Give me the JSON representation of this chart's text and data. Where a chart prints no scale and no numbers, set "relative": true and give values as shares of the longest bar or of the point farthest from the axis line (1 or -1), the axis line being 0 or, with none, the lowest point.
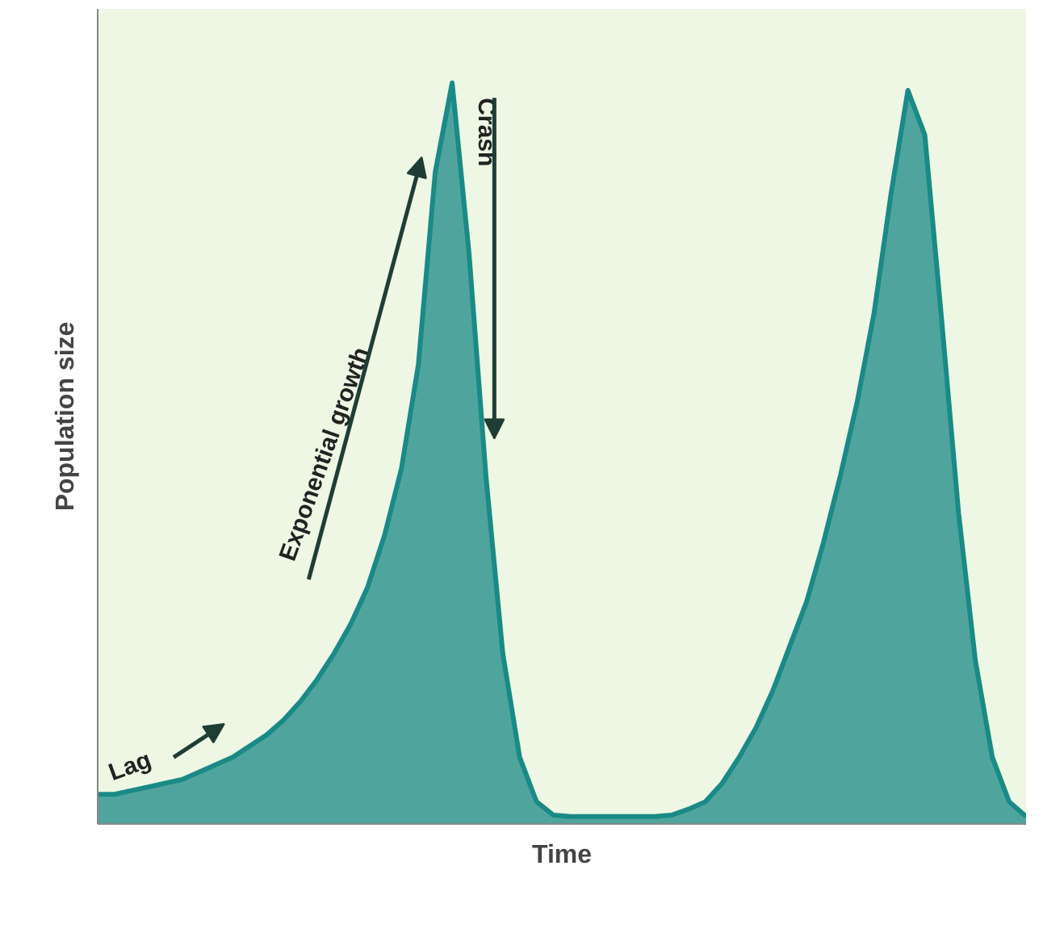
{
  "chart_data": {
    "type": "area",
    "relative": true,
    "xlabel": "Time",
    "ylabel": "Population size",
    "categories": [
      null,
      null,
      null,
      null,
      null,
      null,
      null,
      null,
      null,
      null,
      null,
      null,
      null,
      null,
      null,
      null,
      null,
      null,
      null,
      null,
      null,
      null,
      null,
      null,
      null,
      null,
      null,
      null,
      null,
      null,
      null,
      null,
      null,
      null,
      null,
      null,
      null,
      null,
      null,
      null,
      null,
      null,
      null,
      null,
      null,
      null,
      null,
      null,
      null,
      null,
      null,
      null,
      null,
      null,
      null,
      null
    ],
    "series": [
      {
        "color": "#1a8a86",
        "values": [
          0.04,
          0.04,
          0.045,
          0.05,
          0.055,
          0.06,
          0.07,
          0.08,
          0.09,
          0.105,
          0.12,
          0.14,
          0.165,
          0.195,
          0.23,
          0.27,
          0.32,
          0.39,
          0.48,
          0.62,
          0.88,
          1.0,
          0.77,
          0.47,
          0.23,
          0.09,
          0.03,
          0.012,
          0.01,
          0.01,
          0.01,
          0.01,
          0.01,
          0.01,
          0.012,
          0.02,
          0.03,
          0.055,
          0.09,
          0.13,
          0.18,
          0.24,
          0.3,
          0.38,
          0.47,
          0.57,
          0.69,
          0.85,
          0.99,
          0.93,
          0.68,
          0.42,
          0.22,
          0.09,
          0.03,
          0.01
        ]
      }
    ],
    "annotations": [
      "Lag",
      "Exponential growth",
      "Crash"
    ],
    "grid": false
  }
}
